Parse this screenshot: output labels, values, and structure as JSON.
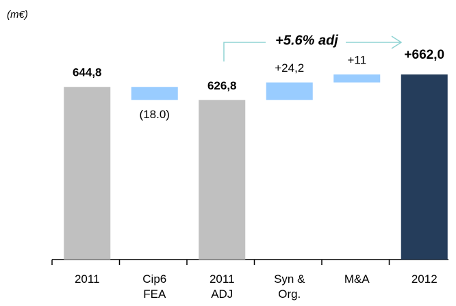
{
  "chart_data": {
    "type": "waterfall",
    "unit": "(m€)",
    "annotation": "+5.6% adj",
    "categories": [
      [
        "2011"
      ],
      [
        "Cip6",
        "FEA"
      ],
      [
        "2011",
        "ADJ"
      ],
      [
        "Syn &",
        "Org."
      ],
      [
        "M&A"
      ],
      [
        "2012"
      ]
    ],
    "values": [
      644.8,
      -18,
      626.8,
      24.2,
      11,
      662
    ],
    "value_labels": [
      "644,8",
      "(18.0)",
      "626,8",
      "+24,2",
      "+11",
      "+662,0"
    ],
    "measure": [
      "absolute",
      "relative",
      "absolute",
      "relative",
      "relative",
      "absolute"
    ],
    "colors": [
      "#c0c0c0",
      "#99ccff",
      "#c0c0c0",
      "#99ccff",
      "#99ccff",
      "#253d5b"
    ],
    "ylim": [
      406,
      765
    ]
  }
}
